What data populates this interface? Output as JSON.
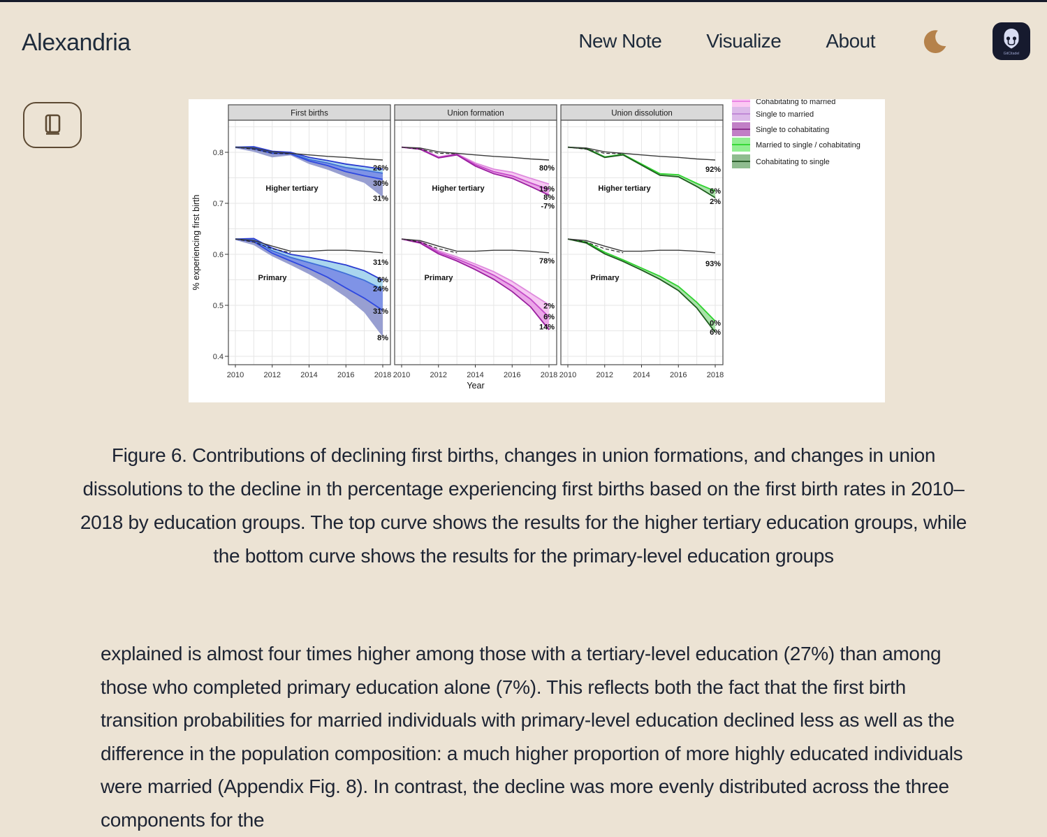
{
  "theme": {
    "page_bg": "#ece3d4",
    "text": "#1d2433",
    "top_line": "#161b2b",
    "moon": "#b5824b",
    "logo_bg": "#161a2e",
    "book_button_border": "#5d4a33"
  },
  "header": {
    "brand": "Alexandria",
    "nav": [
      {
        "id": "new-note",
        "label": "New Note"
      },
      {
        "id": "visualize",
        "label": "Visualize"
      },
      {
        "id": "about",
        "label": "About"
      }
    ],
    "logo_label": "GitCitadel"
  },
  "figure_caption": "Figure 6. Contributions of declining first births, changes in union formations, and changes in union dissolutions to the decline in th percentage experiencing first births based on the first birth rates in 2010–2018 by education groups. The top curve shows the results for the higher tertiary education groups, while the bottom curve shows the results for the primary-level education groups",
  "article": {
    "paragraph": "explained is almost four times higher among those with a tertiary-level education (27%) than among those who completed primary education alone (7%). This reflects both the fact that the first birth transition probabilities for married individuals with primary-level education declined less as well as the difference in the population composition: a much higher proportion of more highly educated individuals were married (Appendix Fig. 8). In contrast, the decline was more evenly distributed across the three components for the"
  },
  "chart_data": {
    "type": "line",
    "x": [
      2010,
      2011,
      2012,
      2013,
      2014,
      2015,
      2016,
      2017,
      2018
    ],
    "xlabel": "Year",
    "ylabel": "% experiencing first birth",
    "ylim": [
      0.38,
      0.86
    ],
    "yticks": [
      0.4,
      0.5,
      0.6,
      0.7,
      0.8
    ],
    "xticks": [
      2010,
      2012,
      2014,
      2016,
      2018
    ],
    "grid": true,
    "legend_position": "top-right, clipped at top edge",
    "legend": [
      {
        "label": "Cohabitating to married",
        "fill": "#fbc9f3",
        "line": "#ea86e4"
      },
      {
        "label": "Single to married",
        "fill": "#dcb9e9",
        "line": "#c08ad6"
      },
      {
        "label": "Single to cohabitating",
        "fill": "#c17fc6",
        "line": "#8e3390"
      },
      {
        "label": "Married to single / cohabitating",
        "fill": "#90ee90",
        "line": "#38d838"
      },
      {
        "label": "Cohabitating to single",
        "fill": "#8fbc8f",
        "line": "#2d5f2d"
      }
    ],
    "panels": [
      {
        "title": "First births",
        "band_fills": [
          "#a9d6ee",
          "#7f93e6",
          "#989fd1"
        ],
        "edge_strokes": [
          "#2a3ad0",
          "#3f6ed8",
          "#2f49e0",
          null
        ],
        "groups": [
          {
            "label": "Higher tertiary",
            "observed": [
              0.81,
              0.8085,
              0.801,
              0.798,
              0.795,
              0.792,
              0.79,
              0.787,
              0.785
            ],
            "dashed": [
              0.81,
              0.806,
              0.798,
              0.797
            ],
            "edges": [
              [
                0.81,
                0.811,
                0.802,
                0.8,
                0.79,
                0.784,
                0.777,
                0.772,
                0.767
              ],
              [
                0.81,
                0.809,
                0.8,
                0.798,
                0.786,
                0.779,
                0.77,
                0.765,
                0.759
              ],
              [
                0.81,
                0.807,
                0.798,
                0.797,
                0.783,
                0.774,
                0.762,
                0.754,
                0.747
              ],
              [
                0.808,
                0.801,
                0.79,
                0.794,
                0.777,
                0.766,
                0.752,
                0.74,
                0.712
              ]
            ],
            "annotations": [
              {
                "text": "26%",
                "v": 0.77
              },
              {
                "text": "30%",
                "v": 0.74
              },
              {
                "text": "31%",
                "v": 0.71
              }
            ]
          },
          {
            "label": "Primary",
            "observed": [
              0.63,
              0.627,
              0.616,
              0.606,
              0.606,
              0.608,
              0.608,
              0.606,
              0.603
            ],
            "dashed": [
              0.63,
              0.624,
              0.611,
              0.603
            ],
            "edges": [
              [
                0.63,
                0.631,
                0.612,
                0.6,
                0.594,
                0.587,
                0.579,
                0.568,
                0.549
              ],
              [
                0.63,
                0.628,
                0.607,
                0.594,
                0.584,
                0.574,
                0.562,
                0.549,
                0.531
              ],
              [
                0.63,
                0.625,
                0.602,
                0.587,
                0.572,
                0.555,
                0.534,
                0.514,
                0.49
              ],
              [
                0.628,
                0.618,
                0.596,
                0.579,
                0.561,
                0.54,
                0.516,
                0.486,
                0.438
              ]
            ],
            "annotations": [
              {
                "text": "31%",
                "v": 0.585
              },
              {
                "text": "6%",
                "v": 0.551
              },
              {
                "text": "24%",
                "v": 0.533
              },
              {
                "text": "31%",
                "v": 0.489
              },
              {
                "text": "8%",
                "v": 0.437
              }
            ]
          }
        ]
      },
      {
        "title": "Union formation",
        "band_fills": [
          "#f6c8f2",
          "#eba6e8"
        ],
        "edge_strokes": [
          "#df8ade",
          "#c44ac8",
          "#9a1f9f"
        ],
        "groups": [
          {
            "label": "Higher tertiary",
            "observed": [
              0.81,
              0.8085,
              0.801,
              0.798,
              0.795,
              0.792,
              0.79,
              0.787,
              0.785
            ],
            "dashed": [
              0.81,
              0.806,
              0.798,
              0.797
            ],
            "edges": [
              [
                0.81,
                0.808,
                0.791,
                0.797,
                0.779,
                0.767,
                0.761,
                0.749,
                0.738
              ],
              [
                0.81,
                0.807,
                0.79,
                0.796,
                0.776,
                0.762,
                0.754,
                0.74,
                0.727
              ],
              [
                0.81,
                0.806,
                0.789,
                0.795,
                0.773,
                0.758,
                0.749,
                0.733,
                0.716
              ]
            ],
            "annotations": [
              {
                "text": "80%",
                "v": 0.77
              },
              {
                "text": "19%",
                "v": 0.729
              },
              {
                "text": "8%",
                "v": 0.712
              },
              {
                "text": "-7%",
                "v": 0.695
              }
            ]
          },
          {
            "label": "Primary",
            "observed": [
              0.63,
              0.627,
              0.616,
              0.606,
              0.606,
              0.608,
              0.608,
              0.606,
              0.603
            ],
            "dashed": [
              0.63,
              0.624,
              0.611,
              0.603
            ],
            "edges": [
              [
                0.63,
                0.626,
                0.607,
                0.595,
                0.581,
                0.566,
                0.547,
                0.524,
                0.501
              ],
              [
                0.63,
                0.624,
                0.604,
                0.591,
                0.576,
                0.559,
                0.538,
                0.512,
                0.477
              ],
              [
                0.63,
                0.622,
                0.601,
                0.587,
                0.57,
                0.551,
                0.527,
                0.497,
                0.452
              ]
            ],
            "annotations": [
              {
                "text": "78%",
                "v": 0.588
              },
              {
                "text": "2%",
                "v": 0.499
              },
              {
                "text": "6%",
                "v": 0.478
              },
              {
                "text": "14%",
                "v": 0.458
              }
            ]
          }
        ]
      },
      {
        "title": "Union dissolution",
        "band_fills": [
          "#a9e3a9"
        ],
        "edge_strokes": [
          "#2fd32f",
          "#1d5c1d"
        ],
        "groups": [
          {
            "label": "Higher tertiary",
            "observed": [
              0.81,
              0.8085,
              0.801,
              0.798,
              0.795,
              0.792,
              0.79,
              0.787,
              0.785
            ],
            "dashed": [
              0.81,
              0.806,
              0.798,
              0.797
            ],
            "edges": [
              [
                0.81,
                0.808,
                0.791,
                0.796,
                0.777,
                0.758,
                0.756,
                0.739,
                0.724
              ],
              [
                0.81,
                0.807,
                0.79,
                0.795,
                0.775,
                0.755,
                0.752,
                0.733,
                0.711
              ]
            ],
            "annotations": [
              {
                "text": "92%",
                "v": 0.767
              },
              {
                "text": "6%",
                "v": 0.725
              },
              {
                "text": "2%",
                "v": 0.704
              }
            ]
          },
          {
            "label": "Primary",
            "observed": [
              0.63,
              0.627,
              0.616,
              0.606,
              0.606,
              0.608,
              0.608,
              0.606,
              0.603
            ],
            "dashed": [
              0.63,
              0.624,
              0.611,
              0.603
            ],
            "edges": [
              [
                0.63,
                0.624,
                0.604,
                0.589,
                0.573,
                0.557,
                0.537,
                0.506,
                0.469
              ],
              [
                0.63,
                0.622,
                0.601,
                0.586,
                0.569,
                0.551,
                0.529,
                0.495,
                0.447
              ]
            ],
            "annotations": [
              {
                "text": "93%",
                "v": 0.582
              },
              {
                "text": "0%",
                "v": 0.466
              },
              {
                "text": "6%",
                "v": 0.448
              }
            ]
          }
        ]
      }
    ]
  }
}
